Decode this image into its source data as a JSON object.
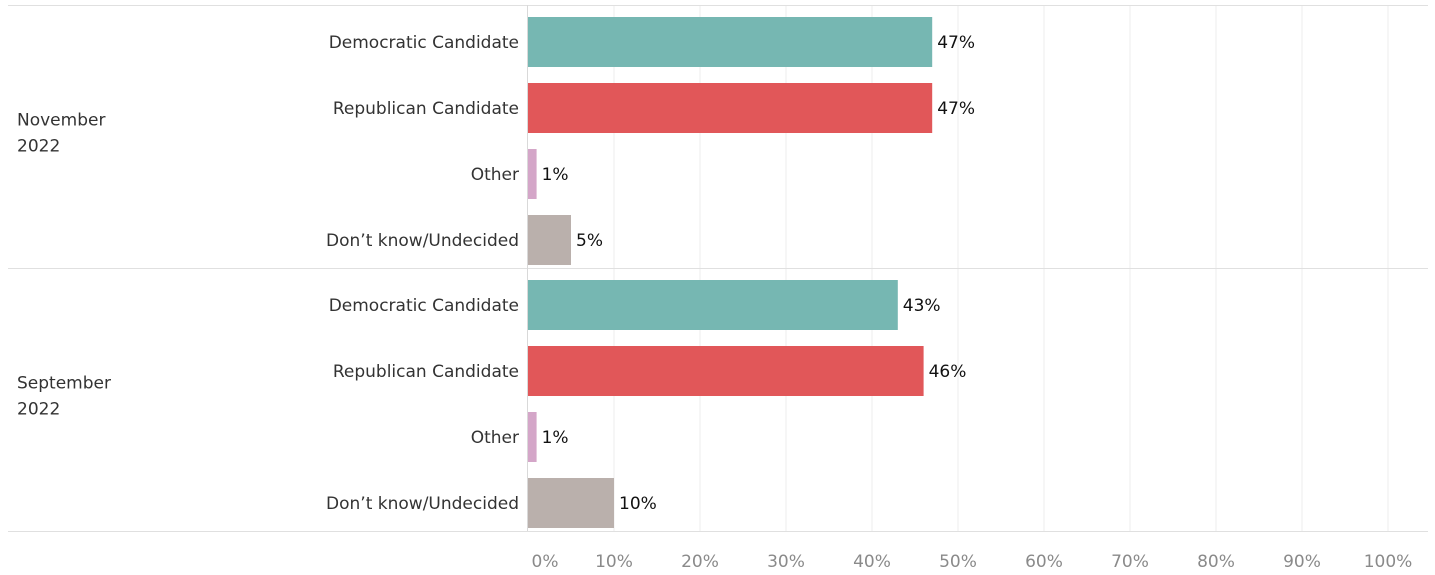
{
  "chart_data": {
    "type": "bar",
    "orientation": "horizontal",
    "groups": [
      {
        "name": "November 2022",
        "name_lines": [
          "November",
          "2022"
        ],
        "categories": [
          "Democratic Candidate",
          "Republican Candidate",
          "Other",
          "Don’t know/Undecided"
        ],
        "values": [
          47,
          47,
          1,
          5
        ],
        "labels": [
          "47%",
          "47%",
          "1%",
          "5%"
        ]
      },
      {
        "name": "September 2022",
        "name_lines": [
          "September",
          "2022"
        ],
        "categories": [
          "Democratic Candidate",
          "Republican Candidate",
          "Other",
          "Don’t know/Undecided"
        ],
        "values": [
          43,
          46,
          1,
          10
        ],
        "labels": [
          "43%",
          "46%",
          "1%",
          "10%"
        ]
      }
    ],
    "category_colors": {
      "Democratic Candidate": "#76b7b2",
      "Republican Candidate": "#e15759",
      "Other": "#d4a6c8",
      "Don’t know/Undecided": "#bab0ac"
    },
    "x_ticks": [
      "0%",
      "10%",
      "20%",
      "30%",
      "40%",
      "50%",
      "60%",
      "70%",
      "80%",
      "90%",
      "100%"
    ],
    "xlim": [
      0,
      100
    ],
    "grid": true,
    "legend": "none"
  }
}
